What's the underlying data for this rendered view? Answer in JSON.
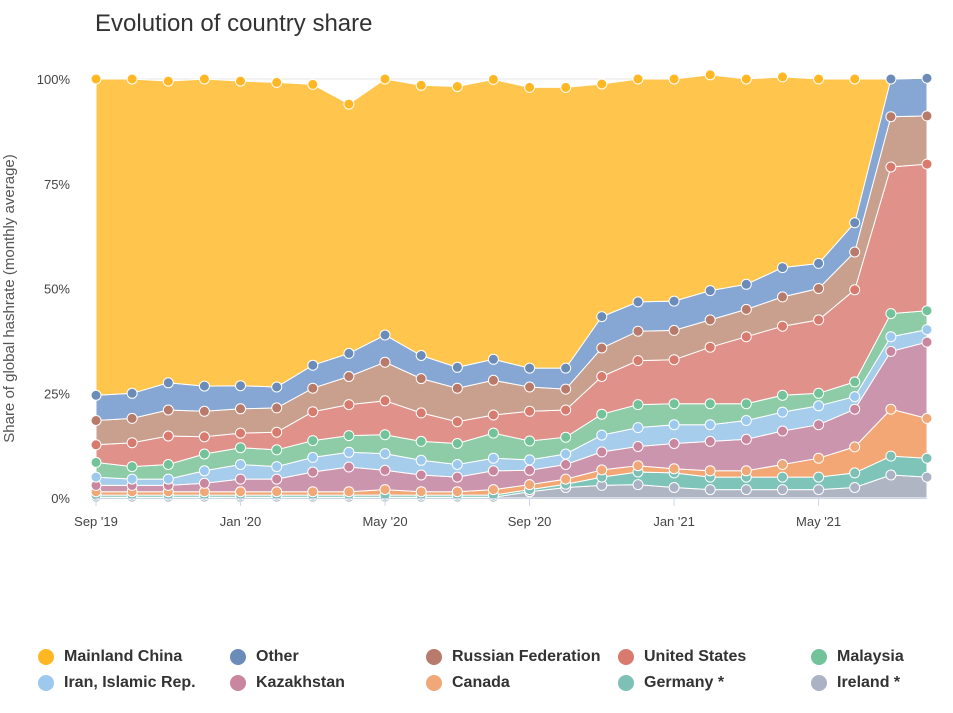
{
  "chart_data": {
    "type": "area",
    "stacked": true,
    "title": "Evolution of country share",
    "ylabel": "Share of global hashrate (monthly average)",
    "ylim": [
      0,
      100
    ],
    "yticks": [
      "0%",
      "25%",
      "50%",
      "75%",
      "100%"
    ],
    "xticks": [
      "Sep '19",
      "Jan '20",
      "May '20",
      "Sep '20",
      "Jan '21",
      "May '21"
    ],
    "x": [
      "2019-09",
      "2019-10",
      "2019-11",
      "2019-12",
      "2020-01",
      "2020-02",
      "2020-03",
      "2020-04",
      "2020-05",
      "2020-06",
      "2020-07",
      "2020-08",
      "2020-09",
      "2020-10",
      "2020-11",
      "2020-12",
      "2021-01",
      "2021-02",
      "2021-03",
      "2021-04",
      "2021-05",
      "2021-06",
      "2021-07",
      "2021-08"
    ],
    "series": [
      {
        "name": "Ireland *",
        "color": "#b0b5c4",
        "values": [
          0.2,
          0.2,
          0.2,
          0.2,
          0.2,
          0.2,
          0.2,
          0.2,
          0.2,
          0.2,
          0.2,
          0.2,
          1.5,
          2.5,
          3.0,
          3.2,
          2.5,
          2.0,
          2.0,
          2.0,
          2.0,
          2.5,
          5.5,
          5.0
        ]
      },
      {
        "name": "Germany *",
        "color": "#7fc4b8",
        "values": [
          0.5,
          0.5,
          0.5,
          0.5,
          0.5,
          0.5,
          0.5,
          0.5,
          0.5,
          0.5,
          0.5,
          0.5,
          0.5,
          0.8,
          2.0,
          3.0,
          3.5,
          3.0,
          3.0,
          3.0,
          3.0,
          3.5,
          4.5,
          4.5
        ]
      },
      {
        "name": "Canada",
        "color": "#f2a774",
        "values": [
          0.8,
          0.8,
          0.8,
          0.8,
          0.8,
          0.8,
          0.8,
          0.8,
          1.3,
          0.8,
          0.8,
          1.3,
          1.2,
          1.2,
          1.7,
          1.5,
          1.0,
          1.5,
          1.5,
          3.0,
          4.5,
          6.2,
          11.2,
          9.5
        ]
      },
      {
        "name": "Kazakhstan",
        "color": "#cc95ae",
        "values": [
          1.5,
          1.5,
          1.5,
          2.0,
          3.0,
          3.0,
          4.7,
          5.9,
          4.6,
          4.0,
          3.5,
          4.5,
          3.4,
          3.5,
          4.3,
          4.6,
          6.0,
          7.0,
          7.5,
          8.0,
          8.0,
          9.0,
          13.8,
          18.2
        ]
      },
      {
        "name": "Iran, Islamic Rep.",
        "color": "#a6cdeb",
        "values": [
          2.0,
          1.5,
          1.5,
          3.0,
          3.5,
          3.0,
          3.5,
          3.5,
          4.0,
          3.5,
          3.0,
          3.0,
          2.5,
          2.5,
          4.0,
          4.5,
          4.5,
          4.0,
          4.5,
          4.5,
          4.5,
          3.0,
          3.5,
          3.0
        ]
      },
      {
        "name": "Malaysia",
        "color": "#8dcca6",
        "values": [
          3.5,
          3.0,
          3.5,
          4.0,
          4.0,
          4.0,
          4.0,
          4.0,
          4.5,
          4.5,
          5.0,
          6.0,
          4.5,
          4.0,
          5.0,
          5.5,
          5.0,
          5.0,
          4.0,
          4.0,
          3.0,
          3.5,
          5.5,
          4.5
        ]
      },
      {
        "name": "United States",
        "color": "#e0918a",
        "values": [
          4.2,
          5.7,
          6.8,
          4.1,
          3.5,
          4.2,
          6.9,
          7.4,
          8.1,
          6.8,
          5.2,
          4.3,
          7.1,
          6.5,
          9.0,
          10.5,
          10.5,
          13.5,
          16.0,
          16.5,
          17.5,
          22.0,
          35.0,
          35.0
        ]
      },
      {
        "name": "Russian Federation",
        "color": "#c9a08e",
        "values": [
          5.8,
          5.8,
          6.2,
          6.1,
          5.8,
          5.8,
          5.6,
          6.7,
          9.2,
          8.2,
          8.0,
          8.3,
          5.8,
          5.0,
          6.8,
          7.0,
          7.0,
          6.5,
          6.5,
          7.0,
          7.5,
          9.0,
          12.0,
          11.5
        ]
      },
      {
        "name": "Other",
        "color": "#86a7d3",
        "values": [
          6.0,
          6.0,
          6.5,
          6.0,
          5.5,
          5.0,
          5.5,
          5.5,
          6.5,
          5.5,
          5.0,
          5.0,
          4.5,
          5.0,
          7.5,
          7.0,
          7.0,
          7.0,
          6.0,
          7.0,
          6.0,
          7.0,
          9.0,
          9.0
        ]
      },
      {
        "name": "Mainland China",
        "color": "#ffc54d",
        "values": [
          75.5,
          75.0,
          72.0,
          73.3,
          72.7,
          72.7,
          67.0,
          59.5,
          61.1,
          64.5,
          67.0,
          66.8,
          67.0,
          67.0,
          55.5,
          53.2,
          53.0,
          51.5,
          49.0,
          45.5,
          44.0,
          34.3,
          0.0,
          0.0
        ]
      }
    ],
    "legend": [
      {
        "name": "Mainland China",
        "color": "#ffb724"
      },
      {
        "name": "Other",
        "color": "#6b8cb8"
      },
      {
        "name": "Russian Federation",
        "color": "#b87a6a"
      },
      {
        "name": "United States",
        "color": "#d87a6e"
      },
      {
        "name": "Malaysia",
        "color": "#72c29a"
      },
      {
        "name": "Iran, Islamic Rep.",
        "color": "#9ec9ef"
      },
      {
        "name": "Kazakhstan",
        "color": "#c9869f"
      },
      {
        "name": "Canada",
        "color": "#f0a878"
      },
      {
        "name": "Germany *",
        "color": "#7dc0b5"
      },
      {
        "name": "Ireland *",
        "color": "#aab2c4"
      }
    ],
    "legend_position": "bottom",
    "grid": "horizontal"
  }
}
